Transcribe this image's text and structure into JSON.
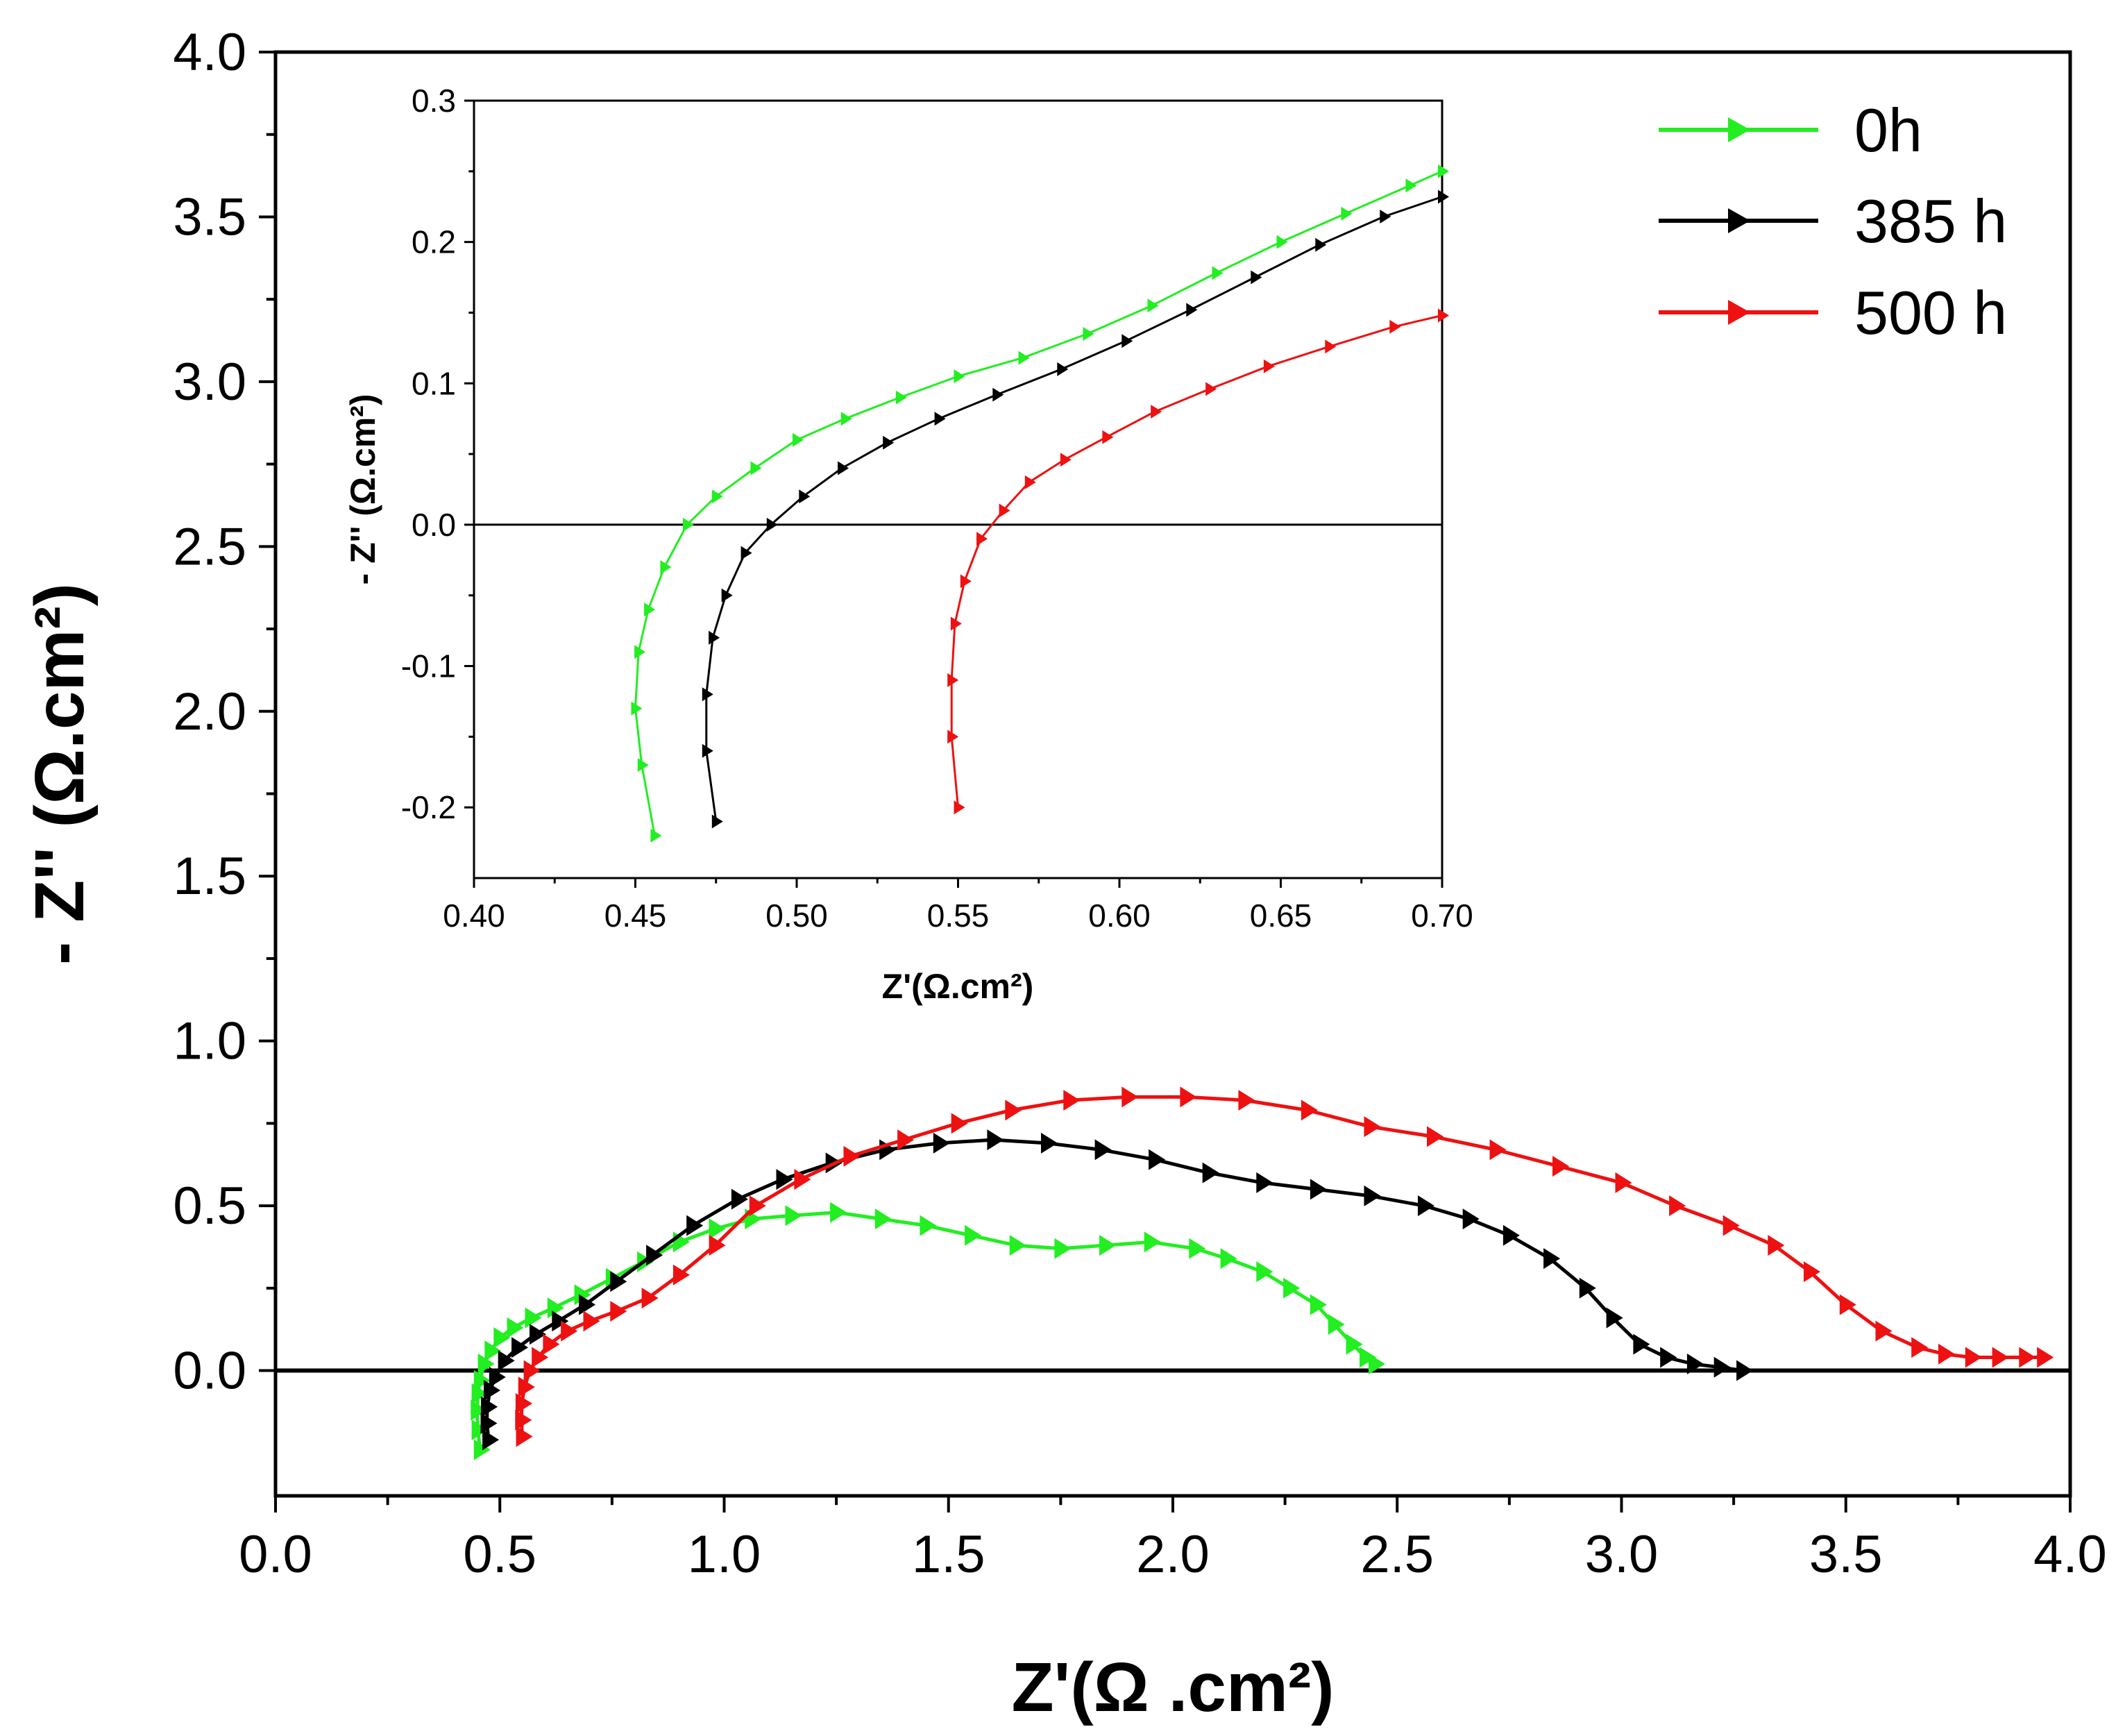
{
  "chart_data": [
    {
      "id": "main",
      "type": "line",
      "title": "",
      "xlabel": "Z'(Ω .cm²)",
      "ylabel": "- Z'' (Ω.cm²)",
      "xlim": [
        0,
        4
      ],
      "ylim": [
        -0.38,
        4.0
      ],
      "x_ticks": [
        0.0,
        0.5,
        1.0,
        1.5,
        2.0,
        2.5,
        3.0,
        3.5,
        4.0
      ],
      "x_tick_labels": [
        "0.0",
        "0.5",
        "1.0",
        "1.5",
        "2.0",
        "2.5",
        "3.0",
        "3.5",
        "4.0"
      ],
      "y_ticks": [
        0.0,
        0.5,
        1.0,
        1.5,
        2.0,
        2.5,
        3.0,
        3.5,
        4.0
      ],
      "y_tick_labels": [
        "0.0",
        "0.5",
        "1.0",
        "1.5",
        "2.0",
        "2.5",
        "3.0",
        "3.5",
        "4.0"
      ],
      "reference_line_y": 0,
      "legend": {
        "position": "top-right",
        "entries": [
          {
            "label": "0h",
            "color": "#22ee22"
          },
          {
            "label": "385 h",
            "color": "#000000"
          },
          {
            "label": "500 h",
            "color": "#ee1111"
          }
        ]
      },
      "series": [
        {
          "name": "0h",
          "color": "#22ee22",
          "x": [
            0.456,
            0.451,
            0.449,
            0.451,
            0.456,
            0.465,
            0.48,
            0.5,
            0.53,
            0.57,
            0.62,
            0.68,
            0.75,
            0.82,
            0.9,
            0.98,
            1.06,
            1.15,
            1.25,
            1.35,
            1.45,
            1.55,
            1.65,
            1.75,
            1.85,
            1.95,
            2.05,
            2.12,
            2.2,
            2.26,
            2.32,
            2.36,
            2.4,
            2.43,
            2.45
          ],
          "y": [
            -0.24,
            -0.18,
            -0.12,
            -0.07,
            -0.03,
            0.02,
            0.06,
            0.1,
            0.13,
            0.16,
            0.19,
            0.23,
            0.28,
            0.33,
            0.39,
            0.43,
            0.46,
            0.47,
            0.48,
            0.46,
            0.44,
            0.41,
            0.38,
            0.37,
            0.38,
            0.39,
            0.37,
            0.34,
            0.3,
            0.25,
            0.2,
            0.14,
            0.08,
            0.04,
            0.02
          ]
        },
        {
          "name": "385 h",
          "color": "#000000",
          "x": [
            0.475,
            0.471,
            0.472,
            0.478,
            0.49,
            0.51,
            0.54,
            0.58,
            0.63,
            0.69,
            0.76,
            0.84,
            0.93,
            1.03,
            1.13,
            1.24,
            1.36,
            1.48,
            1.6,
            1.72,
            1.84,
            1.96,
            2.08,
            2.2,
            2.32,
            2.44,
            2.56,
            2.66,
            2.75,
            2.84,
            2.92,
            2.98,
            3.04,
            3.1,
            3.16,
            3.22,
            3.27
          ],
          "y": [
            -0.21,
            -0.16,
            -0.11,
            -0.06,
            -0.02,
            0.03,
            0.07,
            0.11,
            0.15,
            0.2,
            0.27,
            0.35,
            0.44,
            0.52,
            0.58,
            0.63,
            0.67,
            0.69,
            0.7,
            0.69,
            0.67,
            0.64,
            0.6,
            0.57,
            0.55,
            0.53,
            0.5,
            0.46,
            0.41,
            0.34,
            0.25,
            0.16,
            0.08,
            0.04,
            0.02,
            0.01,
            0.0
          ]
        },
        {
          "name": "500 h",
          "color": "#ee1111",
          "x": [
            0.55,
            0.548,
            0.549,
            0.555,
            0.567,
            0.585,
            0.61,
            0.65,
            0.7,
            0.76,
            0.83,
            0.9,
            0.98,
            1.07,
            1.17,
            1.28,
            1.4,
            1.52,
            1.64,
            1.77,
            1.9,
            2.03,
            2.16,
            2.3,
            2.44,
            2.58,
            2.72,
            2.86,
            3.0,
            3.12,
            3.24,
            3.34,
            3.42,
            3.5,
            3.58,
            3.66,
            3.72,
            3.78,
            3.84,
            3.9,
            3.94
          ],
          "y": [
            -0.2,
            -0.15,
            -0.1,
            -0.05,
            0.0,
            0.04,
            0.08,
            0.12,
            0.15,
            0.18,
            0.22,
            0.29,
            0.38,
            0.5,
            0.58,
            0.65,
            0.7,
            0.75,
            0.79,
            0.82,
            0.83,
            0.83,
            0.82,
            0.79,
            0.74,
            0.71,
            0.67,
            0.62,
            0.57,
            0.5,
            0.44,
            0.38,
            0.3,
            0.2,
            0.12,
            0.07,
            0.05,
            0.04,
            0.04,
            0.04,
            0.04
          ]
        }
      ]
    },
    {
      "id": "inset",
      "type": "line",
      "title": "",
      "xlabel": "Z'(Ω.cm²)",
      "ylabel": "- Z'' (Ω.cm²)",
      "xlim": [
        0.4,
        0.7
      ],
      "ylim": [
        -0.25,
        0.3
      ],
      "x_ticks": [
        0.4,
        0.45,
        0.5,
        0.55,
        0.6,
        0.65,
        0.7
      ],
      "x_tick_labels": [
        "0.40",
        "0.45",
        "0.50",
        "0.55",
        "0.60",
        "0.65",
        "0.70"
      ],
      "y_ticks": [
        -0.2,
        -0.1,
        0.0,
        0.1,
        0.2,
        0.3
      ],
      "y_tick_labels": [
        "-0.2",
        "-0.1",
        "0.0",
        "0.1",
        "0.2",
        "0.3"
      ],
      "reference_line_y": 0,
      "series": [
        {
          "name": "0h",
          "color": "#22ee22",
          "x": [
            0.456,
            0.452,
            0.45,
            0.451,
            0.454,
            0.459,
            0.466,
            0.475,
            0.487,
            0.5,
            0.515,
            0.532,
            0.55,
            0.57,
            0.59,
            0.61,
            0.63,
            0.65,
            0.67,
            0.69,
            0.7
          ],
          "y": [
            -0.22,
            -0.17,
            -0.13,
            -0.09,
            -0.06,
            -0.03,
            0.0,
            0.02,
            0.04,
            0.06,
            0.075,
            0.09,
            0.105,
            0.118,
            0.135,
            0.155,
            0.178,
            0.2,
            0.22,
            0.24,
            0.25
          ]
        },
        {
          "name": "385 h",
          "color": "#000000",
          "x": [
            0.475,
            0.472,
            0.472,
            0.474,
            0.478,
            0.484,
            0.492,
            0.502,
            0.514,
            0.528,
            0.544,
            0.562,
            0.582,
            0.602,
            0.622,
            0.642,
            0.662,
            0.682,
            0.7
          ],
          "y": [
            -0.21,
            -0.16,
            -0.12,
            -0.08,
            -0.05,
            -0.02,
            0.0,
            0.02,
            0.04,
            0.058,
            0.075,
            0.092,
            0.11,
            0.13,
            0.152,
            0.175,
            0.198,
            0.218,
            0.232
          ]
        },
        {
          "name": "500 h",
          "color": "#ee1111",
          "x": [
            0.55,
            0.548,
            0.548,
            0.549,
            0.552,
            0.557,
            0.564,
            0.572,
            0.583,
            0.596,
            0.611,
            0.628,
            0.646,
            0.665,
            0.685,
            0.7
          ],
          "y": [
            -0.2,
            -0.15,
            -0.11,
            -0.07,
            -0.04,
            -0.01,
            0.01,
            0.03,
            0.046,
            0.062,
            0.08,
            0.096,
            0.112,
            0.126,
            0.14,
            0.148
          ]
        }
      ]
    }
  ]
}
